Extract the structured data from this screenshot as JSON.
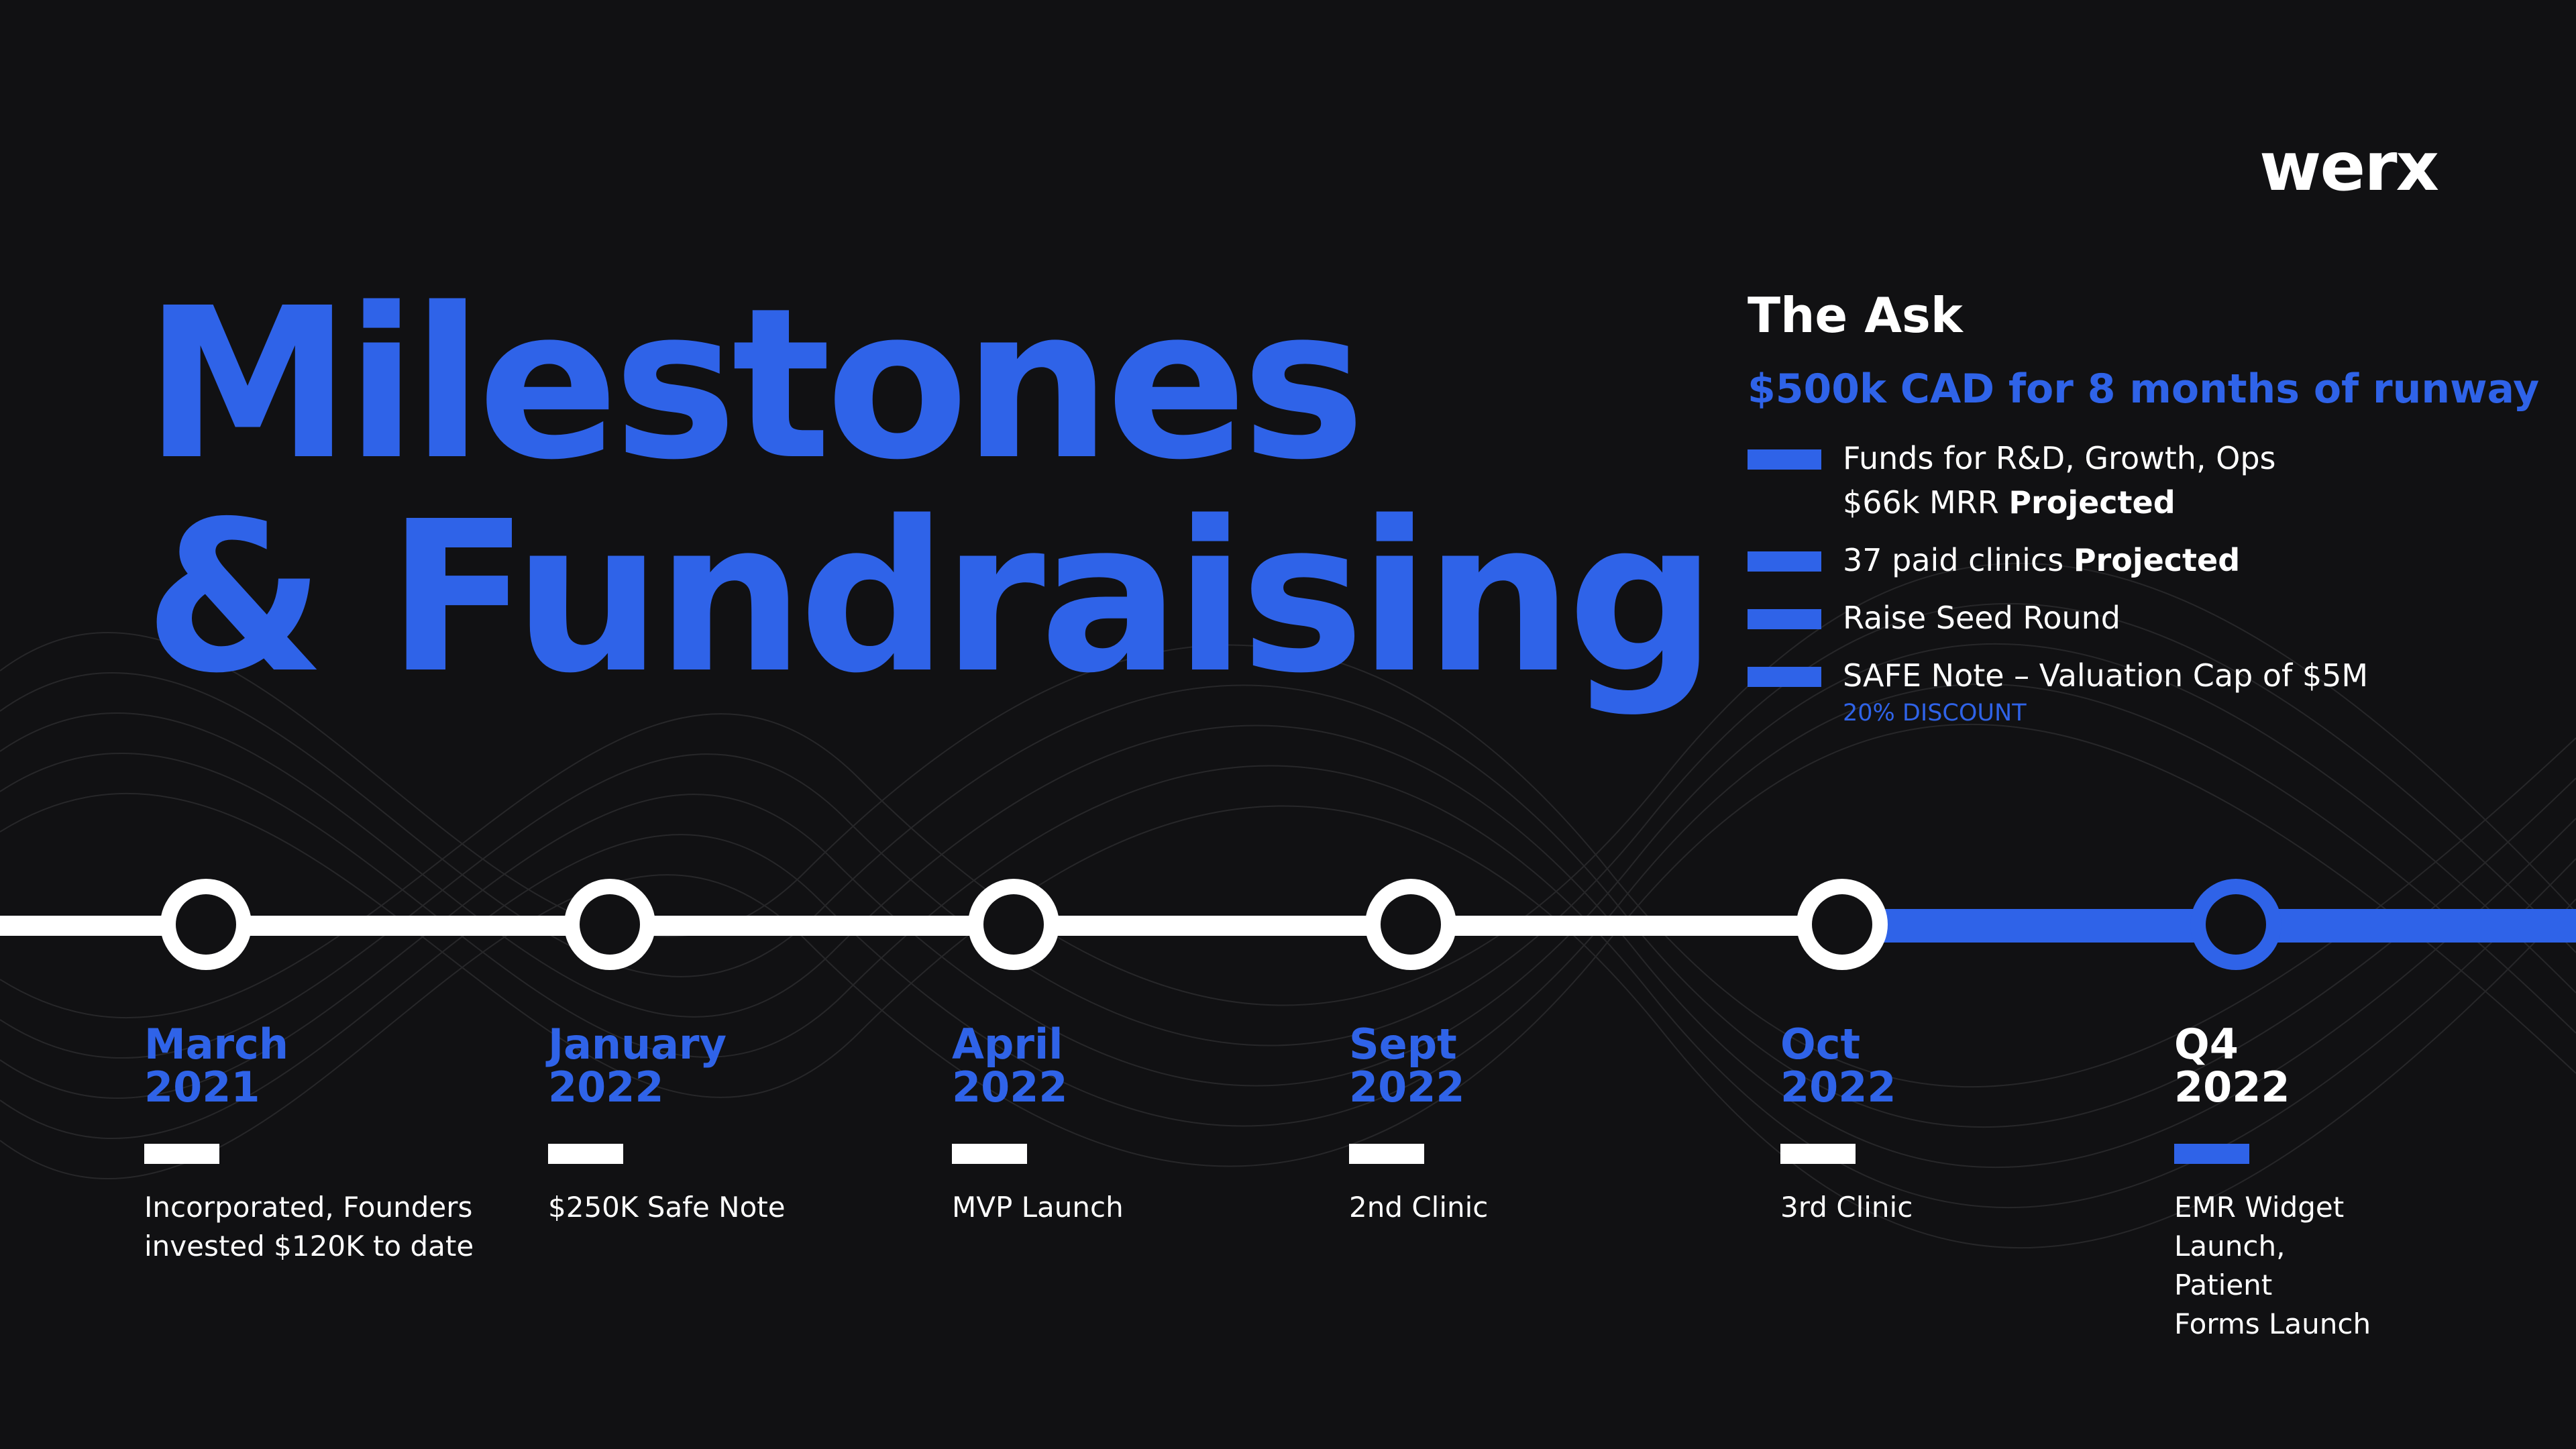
{
  "logo": "werx",
  "title": {
    "line1": "Milestones",
    "line2": "& Fundraising"
  },
  "ask": {
    "heading": "The Ask",
    "amount": "$500k CAD for 8 months of runway",
    "items": [
      {
        "line1": "Funds for R&D, Growth, Ops",
        "line2": "$66k MRR",
        "line2_strong": "Projected"
      },
      {
        "line1": "37 paid clinics",
        "line1_strong": "Projected"
      },
      {
        "line1": "Raise Seed Round"
      },
      {
        "line1": "SAFE Note – Valuation Cap of $5M",
        "sub": "20% DISCOUNT"
      }
    ]
  },
  "timeline": {
    "milestones": [
      {
        "date_line1": "March",
        "date_line2": "2021",
        "desc": [
          "Incorporated, Founders",
          "invested $120K to date"
        ],
        "current": false
      },
      {
        "date_line1": "January",
        "date_line2": "2022",
        "desc": [
          "$250K Safe Note"
        ],
        "current": false
      },
      {
        "date_line1": "April",
        "date_line2": "2022",
        "desc": [
          "MVP Launch"
        ],
        "current": false
      },
      {
        "date_line1": "Sept",
        "date_line2": "2022",
        "desc": [
          "2nd Clinic"
        ],
        "current": false
      },
      {
        "date_line1": "Oct",
        "date_line2": "2022",
        "desc": [
          "3rd Clinic"
        ],
        "current": false
      },
      {
        "date_line1": "Q4",
        "date_line2": "2022",
        "desc": [
          "EMR Widget",
          "Launch,",
          "Patient",
          "Forms Launch"
        ],
        "current": true
      }
    ]
  },
  "colors": {
    "background": "#111113",
    "accent": "#2f63e8",
    "text": "#ffffff"
  }
}
